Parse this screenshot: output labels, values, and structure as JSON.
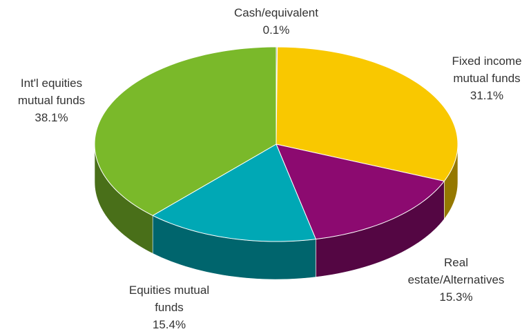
{
  "chart_data": {
    "type": "pie",
    "categories": [
      "Cash/equivalent",
      "Fixed income mutual funds",
      "Real estate/Alternatives",
      "Equities mutual funds",
      "Int'l equities mutual funds"
    ],
    "values": [
      0.1,
      31.1,
      15.3,
      15.4,
      38.1
    ],
    "value_labels": [
      "0.1%",
      "31.1%",
      "15.3%",
      "15.4%",
      "38.1%"
    ],
    "colors": [
      "#9e9e9e",
      "#f9c800",
      "#8c0a70",
      "#00a8b5",
      "#7ab92a"
    ]
  }
}
